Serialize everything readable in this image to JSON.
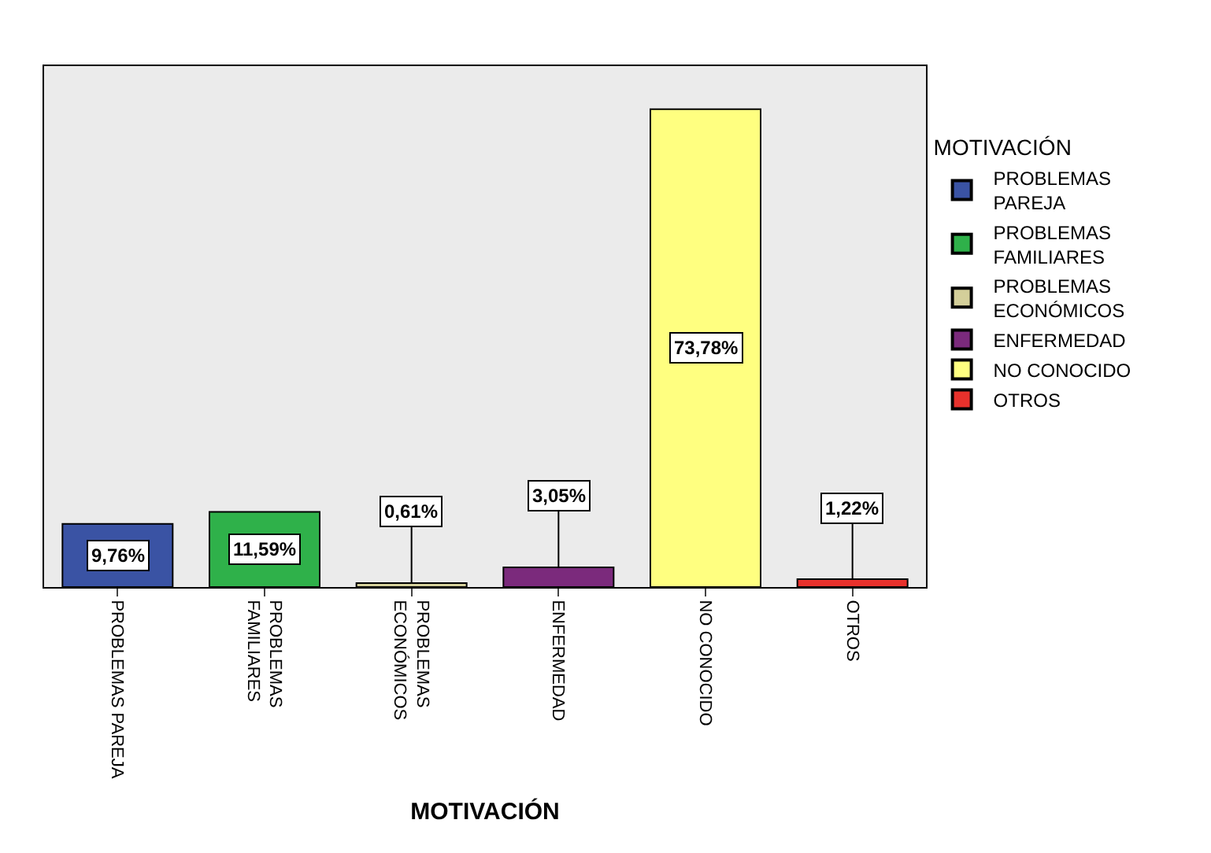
{
  "chart_data": {
    "type": "bar",
    "xlabel": "MOTIVACIÓN",
    "legend_title": "MOTIVACIÓN",
    "categories": [
      "PROBLEMAS PAREJA",
      "PROBLEMAS FAMILIARES",
      "PROBLEMAS ECONÓMICOS",
      "ENFERMEDAD",
      "NO CONOCIDO",
      "OTROS"
    ],
    "series": [
      {
        "name": "PROBLEMAS PAREJA",
        "color": "#3a53a4",
        "values": [
          9.76,
          null,
          null,
          null,
          null,
          null
        ],
        "value_labels": [
          "9,76%",
          null,
          null,
          null,
          null,
          null
        ]
      },
      {
        "name": "PROBLEMAS FAMILIARES",
        "color": "#2fb14a",
        "values": [
          null,
          11.59,
          null,
          null,
          null,
          null
        ],
        "value_labels": [
          null,
          "11,59%",
          null,
          null,
          null,
          null
        ]
      },
      {
        "name": "PROBLEMAS ECONÓMICOS",
        "color": "#d4cf9a",
        "values": [
          null,
          null,
          0.61,
          null,
          null,
          null
        ],
        "value_labels": [
          null,
          null,
          "0,61%",
          null,
          null,
          null
        ]
      },
      {
        "name": "ENFERMEDAD",
        "color": "#7b2a7c",
        "values": [
          null,
          null,
          null,
          3.05,
          null,
          null
        ],
        "value_labels": [
          null,
          null,
          null,
          "3,05%",
          null,
          null
        ]
      },
      {
        "name": "NO CONOCIDO",
        "color": "#ffff80",
        "values": [
          null,
          null,
          null,
          null,
          73.78,
          null
        ],
        "value_labels": [
          null,
          null,
          null,
          null,
          "73,78%",
          null
        ]
      },
      {
        "name": "OTROS",
        "color": "#e8312c",
        "values": [
          null,
          null,
          null,
          null,
          null,
          1.22
        ],
        "value_labels": [
          null,
          null,
          null,
          null,
          null,
          "1,22%"
        ]
      }
    ],
    "legend": "right",
    "grid": false
  }
}
